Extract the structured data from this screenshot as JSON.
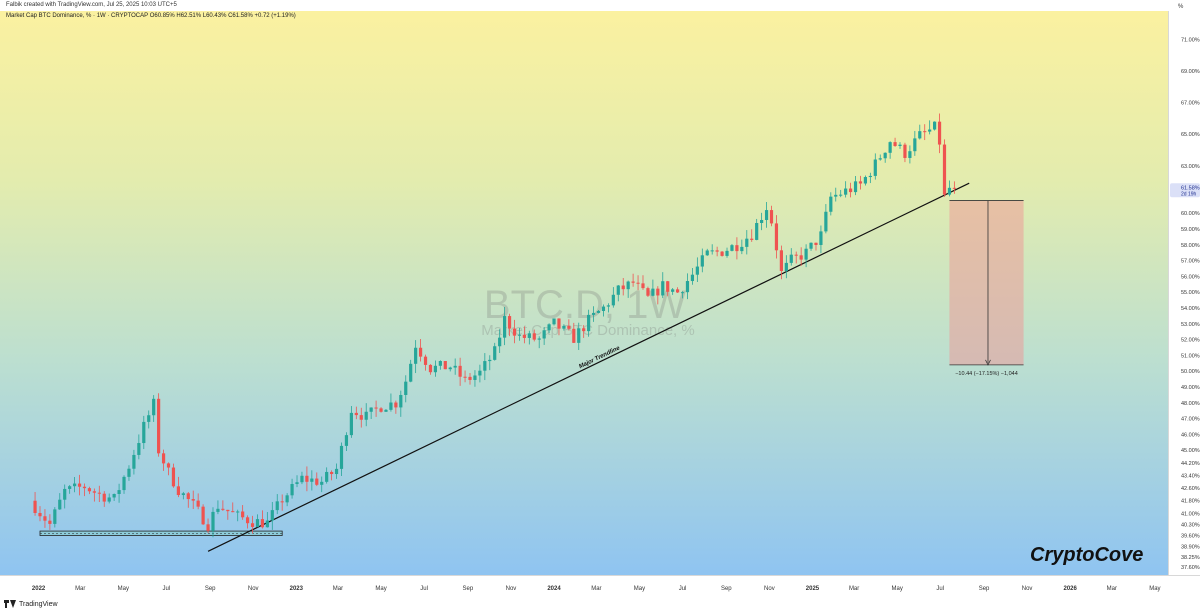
{
  "header": {
    "created_by": "Falbik created with TradingView.com, Jul 25, 2025 10:03 UTC+5",
    "symbol_info": "Market Cap BTC Dominance, %  ·  1W  ·  CRYPTOCAP  O60.85%  H62.51%  L60.43%  C61.58%  +0.72 (+1.19%)"
  },
  "watermark": {
    "symbol": "BTC.D, 1W",
    "name": "Market Cap BTC Dominance, %"
  },
  "branding": {
    "author_mark": "CryptoCove",
    "platform": "TradingView"
  },
  "colors": {
    "up": "#26a69a",
    "down": "#ef5350",
    "current_price_bg": "#dbe0f7"
  },
  "chart_data": {
    "type": "candlestick",
    "timeframe": "1W",
    "yunit": "%",
    "ylim": [
      37.1,
      72.8
    ],
    "y_ticks": [
      37.6,
      38.25,
      38.9,
      39.6,
      40.3,
      41.0,
      41.8,
      42.6,
      43.4,
      44.2,
      45.0,
      46.0,
      47.0,
      48.0,
      49.0,
      50.0,
      51.0,
      52.0,
      53.0,
      54.0,
      55.0,
      56.0,
      57.0,
      58.0,
      59.0,
      60.0,
      63.0,
      65.0,
      67.0,
      69.0,
      71.0
    ],
    "y_tick_labels": [
      "37.60%",
      "38.25%",
      "38.90%",
      "39.60%",
      "40.30%",
      "41.00%",
      "41.80%",
      "42.60%",
      "43.40%",
      "44.20%",
      "45.00%",
      "46.00%",
      "47.00%",
      "48.00%",
      "49.00%",
      "50.00%",
      "51.00%",
      "52.00%",
      "53.00%",
      "54.00%",
      "55.00%",
      "56.00%",
      "57.00%",
      "58.00%",
      "59.00%",
      "60.00%",
      "63.00%",
      "65.00%",
      "67.00%",
      "69.00%",
      "71.00%"
    ],
    "axis_unit_label": "%",
    "current_price": {
      "value": 61.58,
      "label": "61.58%",
      "countdown": "2d 19h"
    },
    "x_labels": [
      {
        "t": "2022-01",
        "label": "2022"
      },
      {
        "t": "2022-03",
        "label": "Mar"
      },
      {
        "t": "2022-05",
        "label": "May"
      },
      {
        "t": "2022-07",
        "label": "Jul"
      },
      {
        "t": "2022-09",
        "label": "Sep"
      },
      {
        "t": "2022-11",
        "label": "Nov"
      },
      {
        "t": "2023-01",
        "label": "2023"
      },
      {
        "t": "2023-03",
        "label": "Mar"
      },
      {
        "t": "2023-05",
        "label": "May"
      },
      {
        "t": "2023-07",
        "label": "Jul"
      },
      {
        "t": "2023-09",
        "label": "Sep"
      },
      {
        "t": "2023-11",
        "label": "Nov"
      },
      {
        "t": "2024-01",
        "label": "2024"
      },
      {
        "t": "2024-03",
        "label": "Mar"
      },
      {
        "t": "2024-05",
        "label": "May"
      },
      {
        "t": "2024-07",
        "label": "Jul"
      },
      {
        "t": "2024-09",
        "label": "Sep"
      },
      {
        "t": "2024-11",
        "label": "Nov"
      },
      {
        "t": "2025-01",
        "label": "2025"
      },
      {
        "t": "2025-03",
        "label": "Mar"
      },
      {
        "t": "2025-05",
        "label": "May"
      },
      {
        "t": "2025-07",
        "label": "Jul"
      },
      {
        "t": "2025-09",
        "label": "Sep"
      },
      {
        "t": "2025-11",
        "label": "Nov"
      },
      {
        "t": "2026-01",
        "label": "2026"
      },
      {
        "t": "2026-03",
        "label": "Mar"
      },
      {
        "t": "2026-05",
        "label": "May"
      }
    ],
    "trendline": {
      "label": "Major Trendline",
      "start": {
        "t": "2022-08-29",
        "y": 38.6
      },
      "end": {
        "t": "2025-08-11",
        "y": 61.9
      }
    },
    "support_box": {
      "t_start": "2022-01-03",
      "t_end": "2022-12-12",
      "y_low": 39.6,
      "y_high": 39.88
    },
    "measure": {
      "t_start": "2025-07-14",
      "t_end": "2025-10-27",
      "from": 60.8,
      "to": 50.4,
      "label": "−10.44 (−17.15%) −1,044"
    },
    "price_path": [
      [
        "2021-12-27",
        41.8
      ],
      [
        "2022-01-24",
        40.3
      ],
      [
        "2022-02-14",
        42.4
      ],
      [
        "2022-03-14",
        42.7
      ],
      [
        "2022-04-04",
        42.2
      ],
      [
        "2022-04-25",
        41.9
      ],
      [
        "2022-05-16",
        44.0
      ],
      [
        "2022-06-06",
        46.5
      ],
      [
        "2022-06-20",
        47.9
      ],
      [
        "2022-06-27",
        45.0
      ],
      [
        "2022-07-11",
        43.6
      ],
      [
        "2022-07-25",
        42.5
      ],
      [
        "2022-08-15",
        41.5
      ],
      [
        "2022-09-05",
        40.3
      ],
      [
        "2022-09-19",
        41.5
      ],
      [
        "2022-10-17",
        40.8
      ],
      [
        "2022-11-07",
        40.5
      ],
      [
        "2022-11-28",
        40.4
      ],
      [
        "2022-12-19",
        41.9
      ],
      [
        "2023-01-16",
        43.2
      ],
      [
        "2023-02-13",
        43.0
      ],
      [
        "2023-03-06",
        43.8
      ],
      [
        "2023-03-27",
        47.6
      ],
      [
        "2023-04-17",
        47.1
      ],
      [
        "2023-05-08",
        47.8
      ],
      [
        "2023-05-29",
        48.0
      ],
      [
        "2023-06-12",
        49.4
      ],
      [
        "2023-06-26",
        51.7
      ],
      [
        "2023-07-17",
        50.2
      ],
      [
        "2023-08-14",
        50.3
      ],
      [
        "2023-09-04",
        49.4
      ],
      [
        "2023-09-25",
        49.9
      ],
      [
        "2023-10-16",
        51.2
      ],
      [
        "2023-10-30",
        53.3
      ],
      [
        "2023-11-20",
        52.2
      ],
      [
        "2023-12-18",
        52.0
      ],
      [
        "2024-01-08",
        53.0
      ],
      [
        "2024-02-05",
        52.1
      ],
      [
        "2024-02-26",
        53.2
      ],
      [
        "2024-03-18",
        54.0
      ],
      [
        "2024-04-08",
        55.1
      ],
      [
        "2024-04-29",
        55.6
      ],
      [
        "2024-05-20",
        54.6
      ],
      [
        "2024-06-10",
        55.4
      ],
      [
        "2024-07-01",
        55.0
      ],
      [
        "2024-07-22",
        56.1
      ],
      [
        "2024-08-12",
        57.4
      ],
      [
        "2024-09-02",
        57.6
      ],
      [
        "2024-09-23",
        58.0
      ],
      [
        "2024-10-14",
        58.7
      ],
      [
        "2024-11-04",
        60.4
      ],
      [
        "2024-11-11",
        59.5
      ],
      [
        "2024-11-25",
        56.2
      ],
      [
        "2024-12-09",
        57.0
      ],
      [
        "2024-12-30",
        57.5
      ],
      [
        "2025-01-20",
        58.6
      ],
      [
        "2025-02-03",
        61.0
      ],
      [
        "2025-02-24",
        61.4
      ],
      [
        "2025-03-17",
        61.8
      ],
      [
        "2025-04-07",
        63.1
      ],
      [
        "2025-04-28",
        64.6
      ],
      [
        "2025-05-19",
        63.8
      ],
      [
        "2025-06-09",
        64.9
      ],
      [
        "2025-06-30",
        65.4
      ],
      [
        "2025-07-07",
        64.5
      ],
      [
        "2025-07-14",
        61.0
      ],
      [
        "2025-07-21",
        61.58
      ]
    ]
  }
}
